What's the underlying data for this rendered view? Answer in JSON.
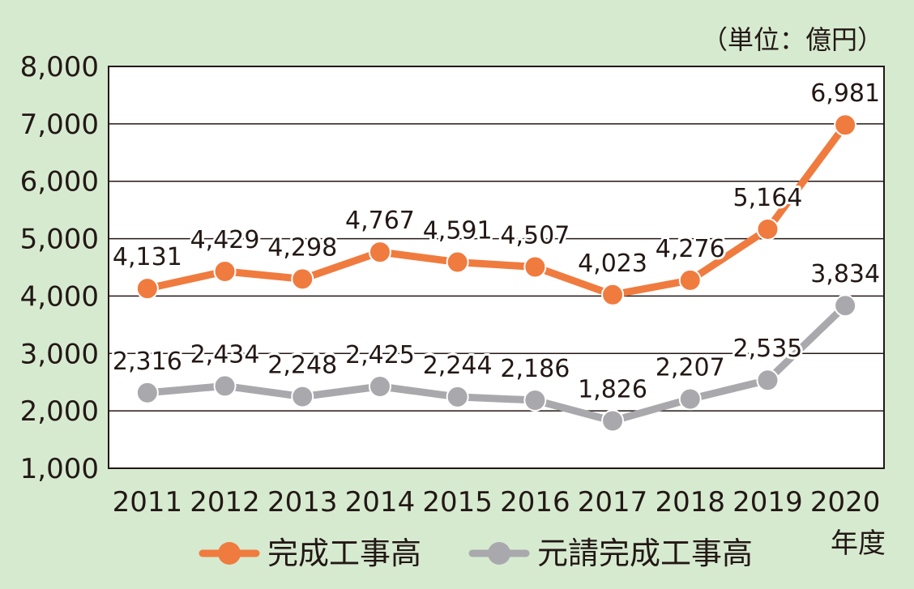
{
  "chart_data": {
    "type": "line",
    "title": "",
    "unit_label": "（単位：億円）",
    "xlabel": "年度",
    "ylabel": "",
    "ylim": [
      1000,
      8000
    ],
    "y_ticks": [
      "1,000",
      "2,000",
      "3,000",
      "4,000",
      "5,000",
      "6,000",
      "7,000",
      "8,000"
    ],
    "y_tick_values": [
      1000,
      2000,
      3000,
      4000,
      5000,
      6000,
      7000,
      8000
    ],
    "categories": [
      "2011",
      "2012",
      "2013",
      "2014",
      "2015",
      "2016",
      "2017",
      "2018",
      "2019",
      "2020"
    ],
    "grid": true,
    "legend_position": "bottom",
    "series": [
      {
        "name": "完成工事高",
        "color": "#f07b3f",
        "values": [
          4131,
          4429,
          4298,
          4767,
          4591,
          4507,
          4023,
          4276,
          5164,
          6981
        ],
        "labels": [
          "4,131",
          "4,429",
          "4,298",
          "4,767",
          "4,591",
          "4,507",
          "4,023",
          "4,276",
          "5,164",
          "6,981"
        ]
      },
      {
        "name": "元請完成工事高",
        "color": "#a9a9ad",
        "values": [
          2316,
          2434,
          2248,
          2425,
          2244,
          2186,
          1826,
          2207,
          2535,
          3834
        ],
        "labels": [
          "2,316",
          "2,434",
          "2,248",
          "2,425",
          "2,244",
          "2,186",
          "1,826",
          "2,207",
          "2,535",
          "3,834"
        ]
      }
    ]
  }
}
